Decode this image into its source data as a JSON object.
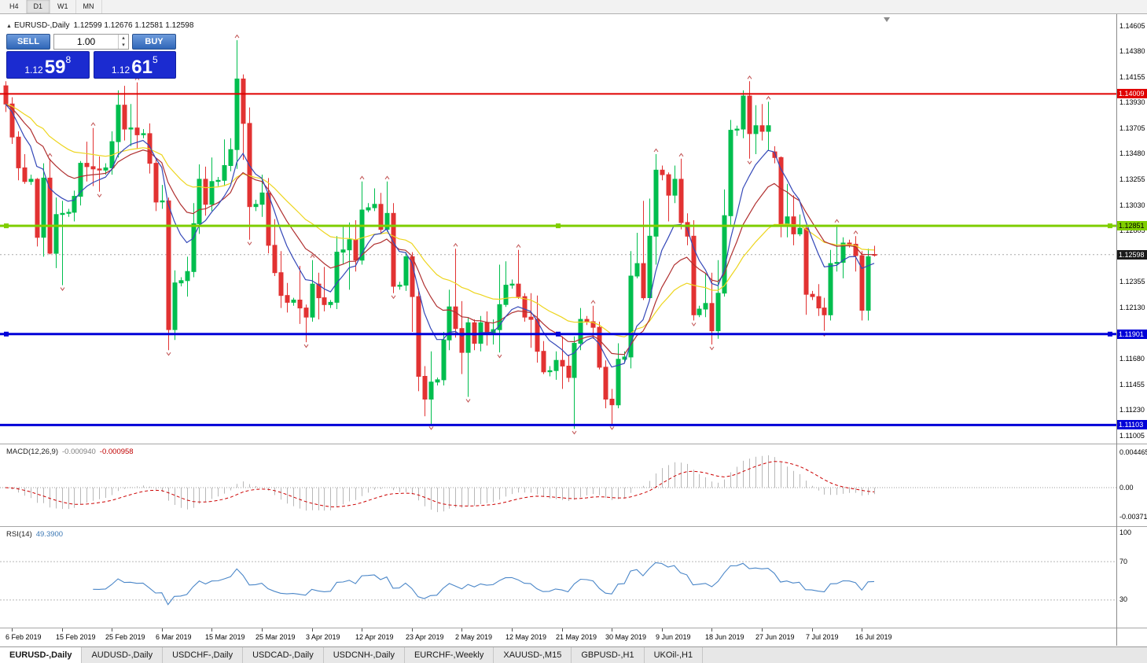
{
  "toolbar": {
    "timeframes": [
      "H4",
      "D1",
      "W1",
      "MN"
    ],
    "active": "D1"
  },
  "chart_header": {
    "toggle_icon": "▲",
    "symbol": "EURUSD-,Daily",
    "ohlc": "1.12599 1.12676 1.12581 1.12598"
  },
  "one_click": {
    "sell": "SELL",
    "buy": "BUY",
    "volume": "1.00",
    "spin_up": "▴",
    "spin_down": "▾",
    "bid": {
      "prefix": "1.12",
      "big": "59",
      "sup": "8"
    },
    "ask": {
      "prefix": "1.12",
      "big": "61",
      "sup": "5"
    }
  },
  "macd_header": {
    "name": "MACD(12,26,9)",
    "main_value": "-0.000940",
    "signal_value": "-0.000958"
  },
  "rsi_header": {
    "name": "RSI(14)",
    "value": "49.3900"
  },
  "tabs": [
    {
      "label": "EURUSD-,Daily",
      "active": true
    },
    {
      "label": "AUDUSD-,Daily"
    },
    {
      "label": "USDCHF-,Daily"
    },
    {
      "label": "USDCAD-,Daily"
    },
    {
      "label": "USDCNH-,Daily"
    },
    {
      "label": "EURCHF-,Weekly"
    },
    {
      "label": "XAUUSD-,M15"
    },
    {
      "label": "GBPUSD-,H1"
    },
    {
      "label": "UKOil-,H1"
    }
  ],
  "chart_data": {
    "type": "candlestick",
    "symbol": "EURUSD",
    "timeframe": "Daily",
    "price_axis_ticks": [
      "1.14605",
      "1.14380",
      "1.14155",
      "1.13930",
      "1.13705",
      "1.13480",
      "1.13255",
      "1.13030",
      "1.12805",
      "1.12580",
      "1.12355",
      "1.12130",
      "1.11905",
      "1.11680",
      "1.11455",
      "1.11230",
      "1.11005"
    ],
    "current_price": "1.12598",
    "up_color": "#00BE4E",
    "down_color": "#E23232",
    "fractal_color": "#C05050",
    "hlines": [
      {
        "price": 1.14009,
        "label": "1.14009",
        "color": "#E00000",
        "width": 2,
        "handles": false,
        "badge_text_color": "#FFFFFF"
      },
      {
        "price": 1.12851,
        "label": "1.12851",
        "color": "#7FCE00",
        "width": 3,
        "handles": true,
        "badge_text_color": "#000000"
      },
      {
        "price": 1.11901,
        "label": "1.11901",
        "color": "#0000D8",
        "width": 3,
        "handles": true,
        "badge_text_color": "#FFFFFF"
      },
      {
        "price": 1.11103,
        "label": "1.11103",
        "color": "#0000D8",
        "width": 3,
        "handles": false,
        "badge_text_color": "#FFFFFF"
      }
    ],
    "moving_averages": [
      {
        "period": 8,
        "color": "#3448B8"
      },
      {
        "period": 16,
        "color": "#B03030"
      },
      {
        "period": 32,
        "color": "#EDD51E"
      }
    ],
    "candles": [
      [
        1.1408,
        1.1412,
        1.1385,
        1.1392
      ],
      [
        1.1392,
        1.1398,
        1.1357,
        1.1363
      ],
      [
        1.1363,
        1.1368,
        1.1325,
        1.1336
      ],
      [
        1.1336,
        1.1348,
        1.1322,
        1.1324
      ],
      [
        1.1324,
        1.133,
        1.1321,
        1.1326
      ],
      [
        1.1326,
        1.1327,
        1.1267,
        1.1275
      ],
      [
        1.1275,
        1.134,
        1.1258,
        1.1327
      ],
      [
        1.1327,
        1.1344,
        1.126,
        1.1261
      ],
      [
        1.1261,
        1.131,
        1.1248,
        1.1295
      ],
      [
        1.1295,
        1.1307,
        1.1233,
        1.1296
      ],
      [
        1.1296,
        1.13,
        1.1293,
        1.1297
      ],
      [
        1.1297,
        1.1316,
        1.1289,
        1.1311
      ],
      [
        1.1311,
        1.1342,
        1.1303,
        1.134
      ],
      [
        1.134,
        1.1359,
        1.1324,
        1.1337
      ],
      [
        1.1337,
        1.1371,
        1.132,
        1.1335
      ],
      [
        1.1335,
        1.1346,
        1.1315,
        1.1334
      ],
      [
        1.1334,
        1.134,
        1.133,
        1.1336
      ],
      [
        1.1336,
        1.1368,
        1.133,
        1.1359
      ],
      [
        1.1359,
        1.1404,
        1.1345,
        1.1391
      ],
      [
        1.1391,
        1.1408,
        1.136,
        1.137
      ],
      [
        1.137,
        1.1392,
        1.1355,
        1.1371
      ],
      [
        1.1371,
        1.1411,
        1.1353,
        1.1365
      ],
      [
        1.1365,
        1.137,
        1.1362,
        1.1366
      ],
      [
        1.1366,
        1.1375,
        1.1331,
        1.134
      ],
      [
        1.134,
        1.1344,
        1.1298,
        1.1306
      ],
      [
        1.1306,
        1.1321,
        1.13,
        1.1307
      ],
      [
        1.1307,
        1.131,
        1.1176,
        1.1194
      ],
      [
        1.1194,
        1.1246,
        1.1185,
        1.1235
      ],
      [
        1.1235,
        1.124,
        1.1232,
        1.1237
      ],
      [
        1.1237,
        1.1258,
        1.1223,
        1.1245
      ],
      [
        1.1245,
        1.1305,
        1.124,
        1.1287
      ],
      [
        1.1287,
        1.1339,
        1.1278,
        1.1326
      ],
      [
        1.1326,
        1.1337,
        1.1294,
        1.1304
      ],
      [
        1.1304,
        1.1345,
        1.1298,
        1.1324
      ],
      [
        1.1324,
        1.1328,
        1.132,
        1.1325
      ],
      [
        1.1325,
        1.1361,
        1.132,
        1.1338
      ],
      [
        1.1338,
        1.1362,
        1.1333,
        1.1352
      ],
      [
        1.1352,
        1.1448,
        1.1335,
        1.1414
      ],
      [
        1.1414,
        1.1418,
        1.1343,
        1.1375
      ],
      [
        1.1375,
        1.1389,
        1.1273,
        1.1302
      ],
      [
        1.1302,
        1.1308,
        1.1298,
        1.1304
      ],
      [
        1.1304,
        1.133,
        1.1293,
        1.1314
      ],
      [
        1.1314,
        1.1327,
        1.1261,
        1.1268
      ],
      [
        1.1268,
        1.1291,
        1.1241,
        1.1244
      ],
      [
        1.1244,
        1.1263,
        1.1213,
        1.1224
      ],
      [
        1.1224,
        1.1235,
        1.1209,
        1.1218
      ],
      [
        1.1218,
        1.1222,
        1.1215,
        1.122
      ],
      [
        1.122,
        1.125,
        1.1199,
        1.1213
      ],
      [
        1.1213,
        1.1216,
        1.1183,
        1.1205
      ],
      [
        1.1205,
        1.1255,
        1.1201,
        1.1234
      ],
      [
        1.1234,
        1.1244,
        1.1203,
        1.1222
      ],
      [
        1.1222,
        1.1249,
        1.121,
        1.1216
      ],
      [
        1.1216,
        1.122,
        1.1213,
        1.1218
      ],
      [
        1.1218,
        1.1276,
        1.1212,
        1.1262
      ],
      [
        1.1262,
        1.1285,
        1.1251,
        1.1264
      ],
      [
        1.1264,
        1.1288,
        1.1229,
        1.1273
      ],
      [
        1.1273,
        1.129,
        1.1245,
        1.1255
      ],
      [
        1.1255,
        1.1324,
        1.1251,
        1.1299
      ],
      [
        1.1299,
        1.1305,
        1.1297,
        1.1301
      ],
      [
        1.1301,
        1.1318,
        1.1298,
        1.1304
      ],
      [
        1.1304,
        1.1314,
        1.1279,
        1.1282
      ],
      [
        1.1282,
        1.1324,
        1.128,
        1.1296
      ],
      [
        1.1296,
        1.1305,
        1.1226,
        1.1232
      ],
      [
        1.1232,
        1.1236,
        1.1229,
        1.1233
      ],
      [
        1.1233,
        1.1262,
        1.1228,
        1.1258
      ],
      [
        1.1258,
        1.1262,
        1.1192,
        1.1223
      ],
      [
        1.1223,
        1.123,
        1.114,
        1.1153
      ],
      [
        1.1153,
        1.1162,
        1.1118,
        1.1133
      ],
      [
        1.1133,
        1.1175,
        1.1111,
        1.1148
      ],
      [
        1.1148,
        1.1152,
        1.1145,
        1.115
      ],
      [
        1.115,
        1.1192,
        1.1145,
        1.1185
      ],
      [
        1.1185,
        1.1229,
        1.1176,
        1.1214
      ],
      [
        1.1214,
        1.1265,
        1.1187,
        1.1195
      ],
      [
        1.1195,
        1.1219,
        1.1155,
        1.1174
      ],
      [
        1.1174,
        1.1205,
        1.1135,
        1.12
      ],
      [
        1.12,
        1.1203,
        1.1176,
        1.1182
      ],
      [
        1.1182,
        1.1206,
        1.1175,
        1.12
      ],
      [
        1.12,
        1.121,
        1.118,
        1.1191
      ],
      [
        1.1191,
        1.1203,
        1.1181,
        1.1194
      ],
      [
        1.1194,
        1.1251,
        1.1174,
        1.1216
      ],
      [
        1.1216,
        1.1254,
        1.1214,
        1.1233
      ],
      [
        1.1233,
        1.1238,
        1.123,
        1.1234
      ],
      [
        1.1234,
        1.1264,
        1.1221,
        1.1223
      ],
      [
        1.1223,
        1.1226,
        1.1201,
        1.1205
      ],
      [
        1.1205,
        1.1226,
        1.1178,
        1.1203
      ],
      [
        1.1203,
        1.1224,
        1.1165,
        1.1175
      ],
      [
        1.1175,
        1.1184,
        1.1155,
        1.1157
      ],
      [
        1.1157,
        1.1162,
        1.1153,
        1.1158
      ],
      [
        1.1158,
        1.1175,
        1.115,
        1.1167
      ],
      [
        1.1167,
        1.1188,
        1.1142,
        1.1162
      ],
      [
        1.1162,
        1.1172,
        1.1148,
        1.1152
      ],
      [
        1.1152,
        1.1188,
        1.1107,
        1.1182
      ],
      [
        1.1182,
        1.1213,
        1.1176,
        1.1203
      ],
      [
        1.1203,
        1.1206,
        1.1198,
        1.1201
      ],
      [
        1.1201,
        1.1215,
        1.1186,
        1.1196
      ],
      [
        1.1196,
        1.1201,
        1.1159,
        1.1161
      ],
      [
        1.1161,
        1.1167,
        1.1125,
        1.1133
      ],
      [
        1.1133,
        1.1142,
        1.1111,
        1.1128
      ],
      [
        1.1128,
        1.1182,
        1.1125,
        1.1168
      ],
      [
        1.1168,
        1.1175,
        1.1165,
        1.117
      ],
      [
        1.117,
        1.1263,
        1.116,
        1.1241
      ],
      [
        1.1241,
        1.1279,
        1.1239,
        1.1252
      ],
      [
        1.1252,
        1.1307,
        1.122,
        1.1222
      ],
      [
        1.1222,
        1.1309,
        1.122,
        1.1276
      ],
      [
        1.1276,
        1.1348,
        1.1251,
        1.1334
      ],
      [
        1.1334,
        1.1338,
        1.1325,
        1.133
      ],
      [
        1.133,
        1.1332,
        1.1289,
        1.1312
      ],
      [
        1.1312,
        1.1338,
        1.1305,
        1.1326
      ],
      [
        1.1326,
        1.1344,
        1.1282,
        1.1288
      ],
      [
        1.1288,
        1.1296,
        1.1268,
        1.1276
      ],
      [
        1.1276,
        1.129,
        1.1202,
        1.1207
      ],
      [
        1.1207,
        1.1215,
        1.1205,
        1.1212
      ],
      [
        1.1212,
        1.1243,
        1.1205,
        1.1217
      ],
      [
        1.1217,
        1.1244,
        1.1181,
        1.1193
      ],
      [
        1.1193,
        1.1255,
        1.1186,
        1.1226
      ],
      [
        1.1226,
        1.1317,
        1.1223,
        1.1294
      ],
      [
        1.1294,
        1.1378,
        1.1285,
        1.1369
      ],
      [
        1.1369,
        1.1373,
        1.1364,
        1.137
      ],
      [
        1.137,
        1.1404,
        1.1362,
        1.1399
      ],
      [
        1.1399,
        1.1412,
        1.1344,
        1.1366
      ],
      [
        1.1366,
        1.1391,
        1.1348,
        1.1373
      ],
      [
        1.1373,
        1.1392,
        1.136,
        1.1368
      ],
      [
        1.1368,
        1.1394,
        1.1351,
        1.1373
      ],
      [
        1.135,
        1.1355,
        1.134,
        1.1345
      ],
      [
        1.1345,
        1.1346,
        1.1275,
        1.1285
      ],
      [
        1.1285,
        1.1322,
        1.1275,
        1.1293
      ],
      [
        1.1293,
        1.1312,
        1.1268,
        1.1278
      ],
      [
        1.1278,
        1.1295,
        1.1276,
        1.1283
      ],
      [
        1.1283,
        1.1286,
        1.1207,
        1.1225
      ],
      [
        1.1225,
        1.1228,
        1.122,
        1.1223
      ],
      [
        1.1223,
        1.1234,
        1.1206,
        1.1213
      ],
      [
        1.1213,
        1.1222,
        1.1193,
        1.1207
      ],
      [
        1.1207,
        1.1264,
        1.1202,
        1.1252
      ],
      [
        1.1252,
        1.1286,
        1.1245,
        1.1253
      ],
      [
        1.1253,
        1.1275,
        1.1239,
        1.127
      ],
      [
        1.127,
        1.1273,
        1.1266,
        1.1269
      ],
      [
        1.1269,
        1.1276,
        1.1245,
        1.1259
      ],
      [
        1.1259,
        1.1263,
        1.1202,
        1.1211
      ],
      [
        1.1211,
        1.1265,
        1.1202,
        1.1258
      ],
      [
        1.12599,
        1.12676,
        1.12581,
        1.12598
      ]
    ],
    "x_labels": [
      {
        "i": 1,
        "t": "6 Feb 2019"
      },
      {
        "i": 9,
        "t": "15 Feb 2019"
      },
      {
        "i": 17,
        "t": "25 Feb 2019"
      },
      {
        "i": 25,
        "t": "6 Mar 2019"
      },
      {
        "i": 33,
        "t": "15 Mar 2019"
      },
      {
        "i": 41,
        "t": "25 Mar 2019"
      },
      {
        "i": 49,
        "t": "3 Apr 2019"
      },
      {
        "i": 57,
        "t": "12 Apr 2019"
      },
      {
        "i": 65,
        "t": "23 Apr 2019"
      },
      {
        "i": 73,
        "t": "2 May 2019"
      },
      {
        "i": 81,
        "t": "12 May 2019"
      },
      {
        "i": 89,
        "t": "21 May 2019"
      },
      {
        "i": 97,
        "t": "30 May 2019"
      },
      {
        "i": 105,
        "t": "9 Jun 2019"
      },
      {
        "i": 113,
        "t": "18 Jun 2019"
      },
      {
        "i": 121,
        "t": "27 Jun 2019"
      },
      {
        "i": 129,
        "t": "7 Jul 2019"
      },
      {
        "i": 137,
        "t": "16 Jul 2019"
      }
    ],
    "macd": {
      "fast": 12,
      "slow": 26,
      "signal": 9,
      "axis": [
        "0.004465",
        "0.00",
        "-0.00371"
      ],
      "hist_color": "#B8B8B8",
      "signal_color": "#CC0000"
    },
    "rsi": {
      "period": 14,
      "axis": [
        "100",
        "70",
        "30"
      ],
      "levels": [
        70,
        30
      ],
      "color": "#4A86C8"
    }
  }
}
